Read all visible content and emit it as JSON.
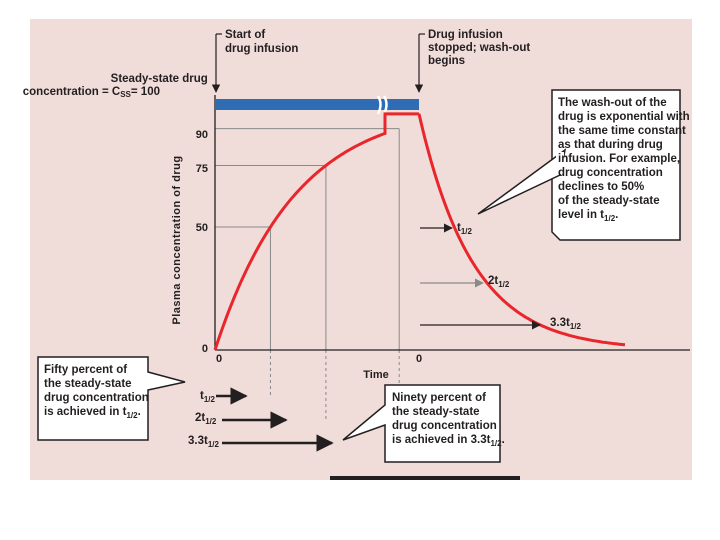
{
  "chart_data": {
    "type": "line",
    "title": "",
    "xlabel": "Time",
    "ylabel": "Plasma concentration of drug",
    "ylim": [
      0,
      100
    ],
    "y_ticks": [
      "0",
      "50",
      "75",
      "90"
    ],
    "x_ticks": [
      "0",
      "0"
    ],
    "steady_state": {
      "value": 100,
      "label_line1": "Steady-state drug",
      "label_line2": "concentration = C",
      "label_sub": "SS",
      "label_value": "= 100"
    },
    "series": [
      {
        "values": [
          0,
          50,
          75,
          90,
          95,
          95,
          50,
          25,
          10,
          3
        ]
      }
    ],
    "x_labels": {
      "half": {
        "main": "t",
        "sub": "1/2"
      },
      "two_half": {
        "main": "2t",
        "sub": "1/2"
      },
      "three_three_half": {
        "main": "3.3t",
        "sub": "1/2"
      }
    },
    "annotations": {
      "start_infusion": [
        "Start of",
        "drug infusion"
      ],
      "stop_infusion": [
        "Drug infusion",
        "stopped; wash-out",
        "begins"
      ],
      "washout": {
        "lines": [
          "The wash-out of the",
          "drug is exponential with",
          "the same time constant",
          "as that during drug",
          "infusion. For example,",
          "drug concentration",
          "declines to 50%",
          "of the steady-state"
        ],
        "last_prefix": "level in t",
        "last_sub": "1/2",
        "last_suffix": "."
      },
      "fifty": {
        "lines": [
          "Fifty percent of",
          "the steady-state",
          "drug concentration"
        ],
        "last_prefix": "is achieved in t",
        "last_sub": "1/2",
        "last_suffix": "."
      },
      "ninety": {
        "lines": [
          "Ninety percent of",
          "the steady-state",
          "drug concentration"
        ],
        "last_prefix": "is achieved in 3.3t",
        "last_sub": "1/2",
        "last_suffix": "."
      }
    },
    "colors": {
      "background": "#f0dcd8",
      "curve": "#e8262c",
      "steady_band": "#2e6db4",
      "axis": "#231f20",
      "guide": "#8a8a8a"
    }
  }
}
